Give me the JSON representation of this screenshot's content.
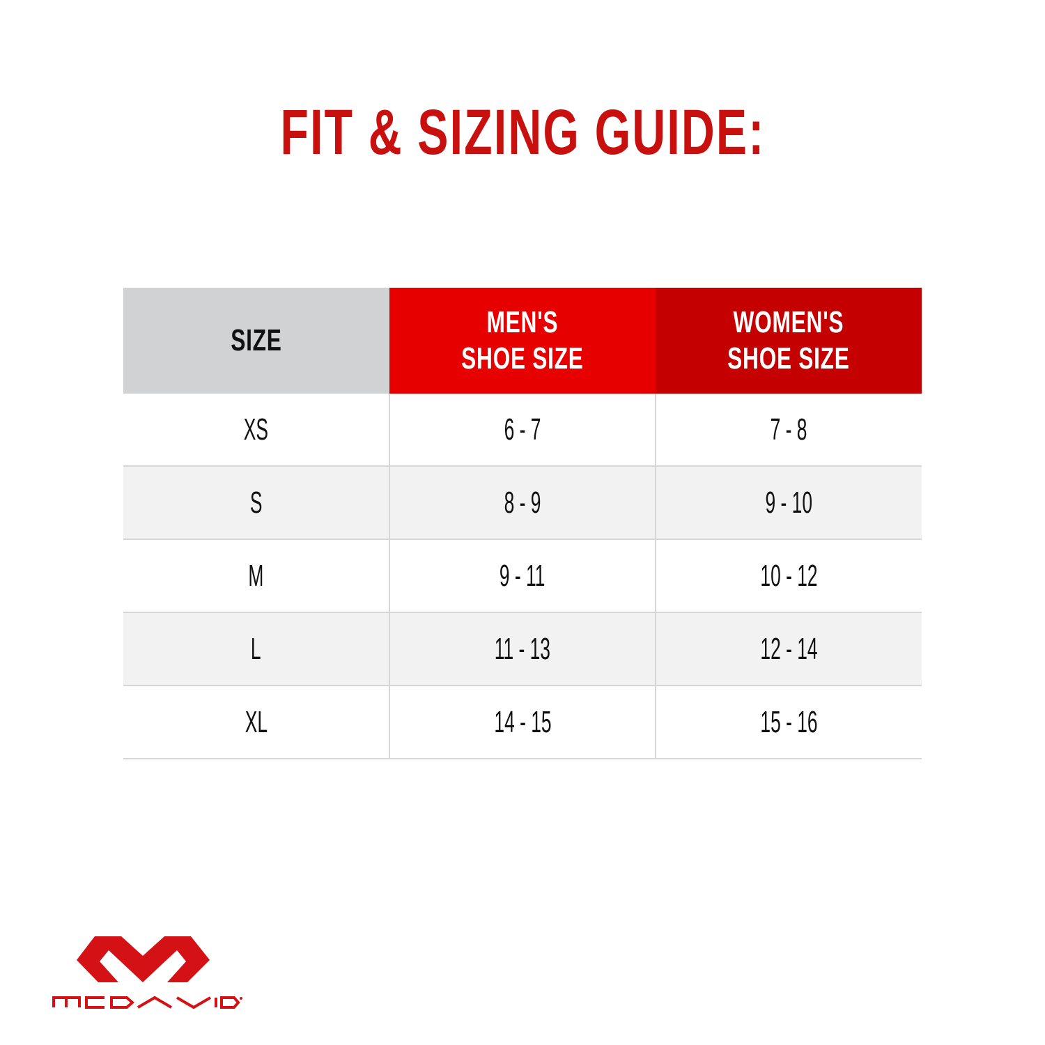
{
  "title": "FIT & SIZING GUIDE:",
  "table": {
    "headers": [
      {
        "line1": "SIZE",
        "line2": ""
      },
      {
        "line1": "MEN'S",
        "line2": "SHOE SIZE"
      },
      {
        "line1": "WOMEN'S",
        "line2": "SHOE SIZE"
      }
    ],
    "rows": [
      [
        "XS",
        "6 - 7",
        "7 - 8"
      ],
      [
        "S",
        "8 - 9",
        "9 - 10"
      ],
      [
        "M",
        "9 - 11",
        "10 - 12"
      ],
      [
        "L",
        "11 - 13",
        "12 - 14"
      ],
      [
        "XL",
        "14 - 15",
        "15 - 16"
      ]
    ]
  },
  "colors": {
    "brand_red": "#c8100f",
    "mens_header": "#e60000",
    "womens_header": "#c40000",
    "size_header": "#d1d2d4"
  },
  "logo": {
    "text": "MCDAVID",
    "icon": "mcdavid-m-logo"
  }
}
